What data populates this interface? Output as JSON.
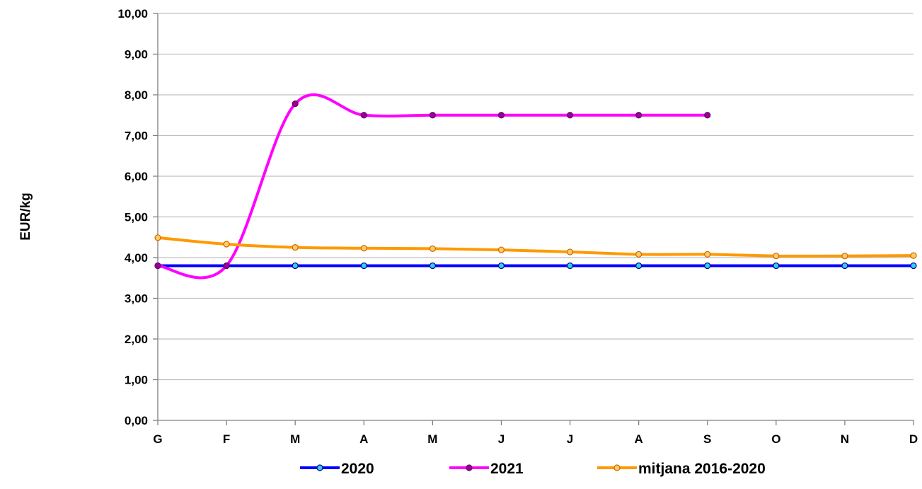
{
  "chart_data": {
    "type": "line",
    "title": "",
    "xlabel": "",
    "ylabel": "EUR/kg",
    "categories": [
      "G",
      "F",
      "M",
      "A",
      "M",
      "J",
      "J",
      "A",
      "S",
      "O",
      "N",
      "D"
    ],
    "ylim": [
      0,
      10
    ],
    "yticks": [
      "0,00",
      "1,00",
      "2,00",
      "3,00",
      "4,00",
      "5,00",
      "6,00",
      "7,00",
      "8,00",
      "9,00",
      "10,00"
    ],
    "grid": true,
    "legend_position": "bottom",
    "series": [
      {
        "name": "2020",
        "color": "#0000ff",
        "marker_fill": "#33ccff",
        "values": [
          3.8,
          3.8,
          3.8,
          3.8,
          3.8,
          3.8,
          3.8,
          3.8,
          3.8,
          3.8,
          3.8,
          3.8
        ]
      },
      {
        "name": "2021",
        "color": "#ff00ff",
        "marker_fill": "#990099",
        "values": [
          3.8,
          3.8,
          7.78,
          7.5,
          7.5,
          7.5,
          7.5,
          7.5,
          7.5,
          null,
          null,
          null
        ]
      },
      {
        "name": "mitjana 2016-2020",
        "color": "#ff9900",
        "marker_fill": "#ffcc66",
        "values": [
          4.49,
          4.33,
          4.25,
          4.23,
          4.22,
          4.19,
          4.14,
          4.08,
          4.08,
          4.04,
          4.04,
          4.05
        ]
      }
    ]
  }
}
